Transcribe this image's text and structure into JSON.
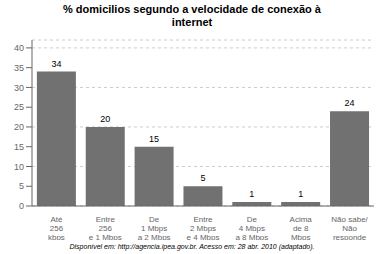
{
  "chart_data": {
    "type": "bar",
    "title": "% domicilios segundo a velocidade de conexão à\ninternet",
    "categories": [
      "Até\n256\nkbps",
      "Entre\n256\ne 1 Mbps",
      "De\n1 Mbps\na 2 Mbps",
      "Entre\n2 Mbps\ne 4 Mbps",
      "De\n4 Mbps\na 8 Mbps",
      "Acima\nde 8\nMbps",
      "Não sabe/\nNão\nresponde"
    ],
    "values": [
      34,
      20,
      15,
      5,
      1,
      1,
      24
    ],
    "color": "#717171",
    "ylim": [
      0,
      42
    ],
    "yticks": [
      0,
      5,
      10,
      15,
      20,
      25,
      30,
      35,
      40
    ],
    "grid": true,
    "data_labels": true,
    "annotations": [
      "Disponível em: http://agencia.ipea.gov.br. Acesso em: 28 abr. 2010 (adaptado)."
    ]
  }
}
